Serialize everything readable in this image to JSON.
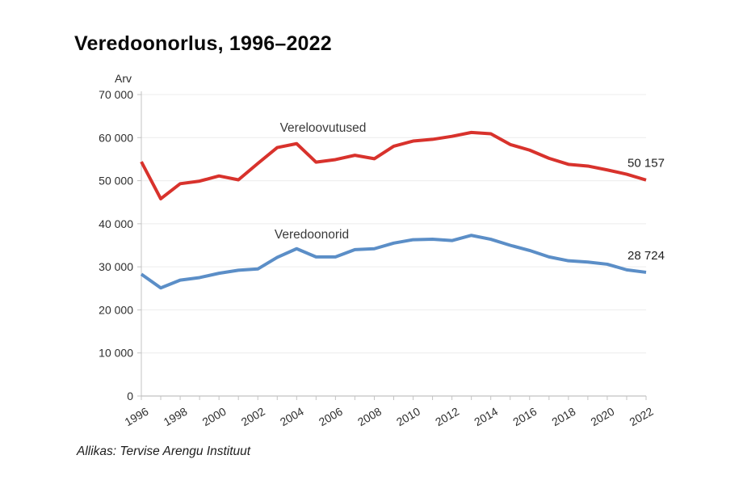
{
  "title": "Veredoonorlus, 1996–2022",
  "source": "Allikas: Tervise Arengu Instituut",
  "chart_data": {
    "type": "line",
    "title": "Veredoonorlus, 1996–2022",
    "xlabel": "",
    "ylabel": "Arv",
    "xlim": [
      1996,
      2022
    ],
    "ylim": [
      0,
      70000
    ],
    "ytick_step": 10000,
    "ytick_labels": [
      "0",
      "10 000",
      "20 000",
      "30 000",
      "40 000",
      "50 000",
      "60 000",
      "70 000"
    ],
    "xtick_labels": [
      "1996",
      "1998",
      "2000",
      "2002",
      "2004",
      "2006",
      "2008",
      "2010",
      "2012",
      "2014",
      "2016",
      "2018",
      "2020",
      "2022"
    ],
    "grid": "horizontal-light",
    "legend_position": "inline-labels",
    "x": [
      1996,
      1997,
      1998,
      1999,
      2000,
      2001,
      2002,
      2003,
      2004,
      2005,
      2006,
      2007,
      2008,
      2009,
      2010,
      2011,
      2012,
      2013,
      2014,
      2015,
      2016,
      2017,
      2018,
      2019,
      2020,
      2021,
      2022
    ],
    "series": [
      {
        "name": "Vereloovutused",
        "color": "#d8322c",
        "end_label": "50 157",
        "values": [
          54400,
          45800,
          49300,
          49900,
          51100,
          50200,
          54000,
          57700,
          58600,
          54300,
          54900,
          55900,
          55100,
          58000,
          59200,
          59600,
          60300,
          61200,
          60900,
          58400,
          57100,
          55200,
          53800,
          53400,
          52500,
          51500,
          50157
        ]
      },
      {
        "name": "Veredoonorid",
        "color": "#5b8ec7",
        "end_label": "28 724",
        "values": [
          28300,
          25100,
          26900,
          27500,
          28500,
          29200,
          29500,
          32200,
          34200,
          32300,
          32300,
          34000,
          34200,
          35500,
          36300,
          36400,
          36100,
          37300,
          36400,
          35000,
          33800,
          32300,
          31400,
          31100,
          30600,
          29300,
          28724
        ]
      }
    ],
    "colors": {
      "grid": "#ececec",
      "axis": "#c3c3c3",
      "x_axis_line": "#b3b3b3",
      "tick_text": "#2f2f2f",
      "series_label_text": "#3a3a3a",
      "end_label_text": "#1f1f1f"
    }
  }
}
